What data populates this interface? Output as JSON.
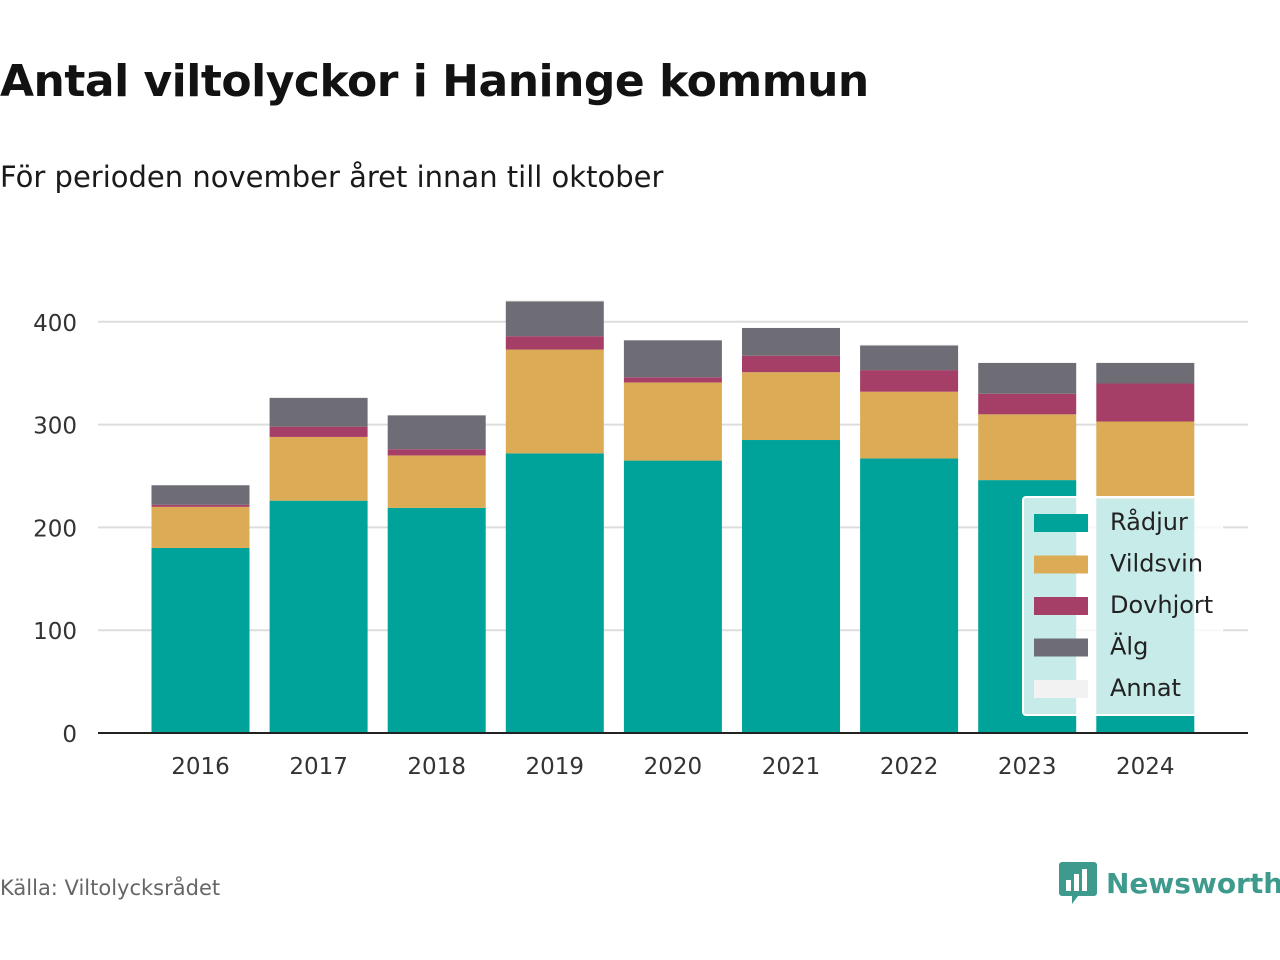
{
  "header": {
    "title": "Antal viltolyckor i Haninge kommun",
    "subtitle": "För perioden november året innan till oktober"
  },
  "footer": {
    "source": "Källa: Viltolycksrådet",
    "brand": "Newsworthy",
    "brand_icon": "bar-chart-speech-bubble-icon"
  },
  "colors": {
    "Rådjur": "#00a39a",
    "Vildsvin": "#dbab56",
    "Dovhjort": "#a53f68",
    "Älg": "#6e6d75",
    "Annat": "#f2f2f2",
    "grid": "#dddddd",
    "axis": "#222222",
    "brand": "#3e9a8d"
  },
  "chart_data": {
    "type": "bar",
    "stacked": true,
    "categories": [
      "2016",
      "2017",
      "2018",
      "2019",
      "2020",
      "2021",
      "2022",
      "2023",
      "2024"
    ],
    "series": [
      {
        "name": "Rådjur",
        "values": [
          180,
          226,
          219,
          272,
          265,
          285,
          267,
          246,
          228
        ]
      },
      {
        "name": "Vildsvin",
        "values": [
          40,
          62,
          51,
          101,
          76,
          66,
          65,
          64,
          75
        ]
      },
      {
        "name": "Dovhjort",
        "values": [
          2,
          10,
          6,
          13,
          5,
          16,
          21,
          20,
          37
        ]
      },
      {
        "name": "Älg",
        "values": [
          19,
          28,
          33,
          34,
          36,
          27,
          24,
          30,
          20
        ]
      },
      {
        "name": "Annat",
        "values": [
          0,
          0,
          0,
          1,
          0,
          0,
          1,
          0,
          0
        ]
      }
    ],
    "yticks": [
      0,
      100,
      200,
      300,
      400
    ],
    "ylim": [
      0,
      420
    ],
    "grid": true,
    "legend_position": "bottom-right"
  }
}
